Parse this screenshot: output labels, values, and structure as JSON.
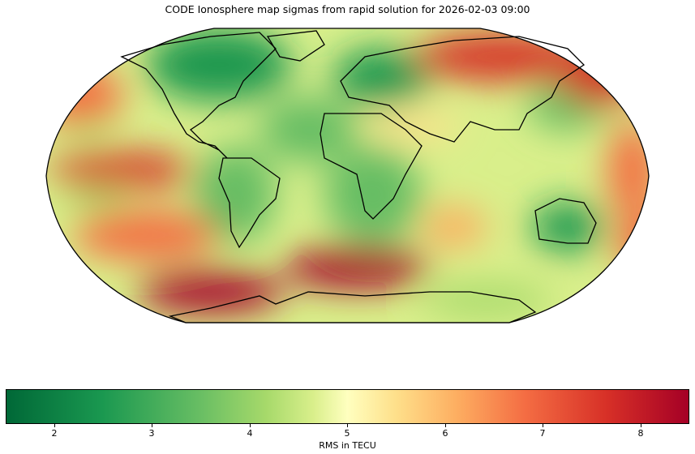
{
  "title": "CODE Ionosphere map sigmas from rapid solution for 2026-02-03 09:00",
  "projection": "Robinson",
  "colormap": "RdYlGn_r",
  "colors": {
    "low": "#006837",
    "mid": "#ffffbf",
    "high": "#a50026"
  },
  "colorbar": {
    "label": "RMS in TECU",
    "range": [
      1.5,
      8.5
    ],
    "ticks": [
      "2",
      "3",
      "4",
      "5",
      "6",
      "7",
      "8"
    ]
  }
}
